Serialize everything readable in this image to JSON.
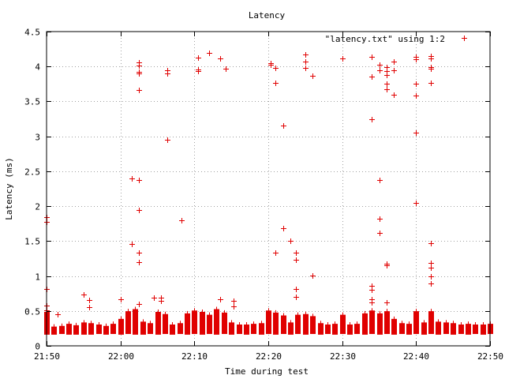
{
  "chart_data": {
    "type": "scatter",
    "title": "Latency",
    "xlabel": "Time during test",
    "ylabel": "Latency (ms)",
    "x_unit": "minutes",
    "xlim_min": [
      0,
      60
    ],
    "ylim": [
      0,
      4.5
    ],
    "x_ticks": [
      {
        "label": "21:50",
        "value": 0
      },
      {
        "label": "22:00",
        "value": 10
      },
      {
        "label": "22:10",
        "value": 20
      },
      {
        "label": "22:20",
        "value": 30
      },
      {
        "label": "22:30",
        "value": 40
      },
      {
        "label": "22:40",
        "value": 50
      },
      {
        "label": "22:50",
        "value": 60
      }
    ],
    "y_ticks": [
      {
        "label": "0",
        "value": 0
      },
      {
        "label": "0.5",
        "value": 0.5
      },
      {
        "label": "1",
        "value": 1
      },
      {
        "label": "1.5",
        "value": 1.5
      },
      {
        "label": "2",
        "value": 2
      },
      {
        "label": "2.5",
        "value": 2.5
      },
      {
        "label": "3",
        "value": 3
      },
      {
        "label": "3.5",
        "value": 3.5
      },
      {
        "label": "4",
        "value": 4
      },
      {
        "label": "4.5",
        "value": 4.5
      }
    ],
    "grid": true,
    "legend": {
      "position": "top-right",
      "entries": [
        "\"latency.txt\" using 1:2"
      ]
    },
    "series": [
      {
        "name": "\"latency.txt\" using 1:2",
        "color": "#e00000",
        "marker": "plus",
        "points": [
          [
            0.0,
            1.84
          ],
          [
            0.0,
            1.78
          ],
          [
            0.0,
            0.81
          ],
          [
            0.0,
            0.58
          ],
          [
            0.0,
            0.51
          ],
          [
            0.0,
            0.47
          ],
          [
            1.5,
            0.45
          ],
          [
            5.0,
            0.74
          ],
          [
            5.8,
            0.66
          ],
          [
            5.8,
            0.55
          ],
          [
            10.0,
            0.67
          ],
          [
            11.5,
            2.4
          ],
          [
            11.5,
            1.46
          ],
          [
            12.5,
            4.06
          ],
          [
            12.5,
            4.01
          ],
          [
            12.5,
            3.92
          ],
          [
            12.5,
            3.9
          ],
          [
            12.5,
            3.66
          ],
          [
            12.5,
            2.37
          ],
          [
            12.5,
            1.95
          ],
          [
            12.5,
            1.33
          ],
          [
            12.5,
            1.2
          ],
          [
            12.5,
            0.6
          ],
          [
            14.5,
            0.69
          ],
          [
            15.5,
            0.69
          ],
          [
            15.5,
            0.65
          ],
          [
            16.3,
            3.95
          ],
          [
            16.3,
            3.9
          ],
          [
            16.3,
            2.95
          ],
          [
            18.3,
            1.8
          ],
          [
            20.5,
            4.13
          ],
          [
            20.5,
            3.96
          ],
          [
            20.5,
            3.94
          ],
          [
            22.0,
            4.2
          ],
          [
            23.5,
            4.12
          ],
          [
            23.5,
            0.67
          ],
          [
            24.2,
            3.97
          ],
          [
            25.3,
            0.64
          ],
          [
            25.3,
            0.57
          ],
          [
            30.3,
            4.05
          ],
          [
            30.3,
            4.03
          ],
          [
            31.0,
            3.98
          ],
          [
            31.0,
            3.77
          ],
          [
            31.0,
            1.33
          ],
          [
            32.0,
            3.16
          ],
          [
            32.0,
            1.68
          ],
          [
            33.0,
            1.5
          ],
          [
            33.7,
            1.33
          ],
          [
            33.7,
            1.23
          ],
          [
            33.7,
            0.81
          ],
          [
            33.7,
            0.7
          ],
          [
            35.0,
            4.17
          ],
          [
            35.0,
            4.07
          ],
          [
            35.0,
            3.98
          ],
          [
            36.0,
            3.87
          ],
          [
            36.0,
            1.01
          ],
          [
            40.0,
            4.11
          ],
          [
            44.0,
            4.14
          ],
          [
            44.0,
            3.85
          ],
          [
            44.0,
            3.25
          ],
          [
            44.0,
            0.86
          ],
          [
            44.0,
            0.8
          ],
          [
            44.0,
            0.67
          ],
          [
            44.0,
            0.62
          ],
          [
            45.0,
            4.02
          ],
          [
            45.0,
            3.95
          ],
          [
            45.0,
            2.37
          ],
          [
            45.0,
            1.82
          ],
          [
            45.0,
            1.62
          ],
          [
            46.0,
            3.99
          ],
          [
            46.0,
            3.93
          ],
          [
            46.0,
            3.88
          ],
          [
            46.0,
            3.75
          ],
          [
            46.0,
            3.68
          ],
          [
            46.0,
            1.18
          ],
          [
            46.0,
            1.15
          ],
          [
            46.0,
            0.62
          ],
          [
            47.0,
            4.07
          ],
          [
            47.0,
            3.95
          ],
          [
            47.0,
            3.59
          ],
          [
            50.0,
            4.14
          ],
          [
            50.0,
            4.1
          ],
          [
            50.0,
            3.75
          ],
          [
            50.0,
            3.58
          ],
          [
            50.0,
            3.05
          ],
          [
            50.0,
            2.05
          ],
          [
            52.0,
            4.15
          ],
          [
            52.0,
            4.11
          ],
          [
            52.0,
            3.99
          ],
          [
            52.0,
            3.97
          ],
          [
            52.0,
            3.76
          ],
          [
            52.0,
            1.47
          ],
          [
            52.0,
            1.19
          ],
          [
            52.0,
            1.12
          ],
          [
            52.0,
            0.99
          ],
          [
            52.0,
            0.89
          ]
        ],
        "binned_clusters": [
          [
            0.0,
            0.16,
            0.48
          ],
          [
            1.0,
            0.16,
            0.27
          ],
          [
            2.0,
            0.17,
            0.28
          ],
          [
            3.0,
            0.16,
            0.31
          ],
          [
            4.0,
            0.16,
            0.29
          ],
          [
            5.0,
            0.16,
            0.33
          ],
          [
            6.0,
            0.16,
            0.32
          ],
          [
            7.0,
            0.17,
            0.3
          ],
          [
            8.0,
            0.16,
            0.28
          ],
          [
            9.0,
            0.17,
            0.31
          ],
          [
            10.0,
            0.16,
            0.38
          ],
          [
            11.0,
            0.17,
            0.49
          ],
          [
            12.0,
            0.16,
            0.52
          ],
          [
            13.0,
            0.16,
            0.34
          ],
          [
            14.0,
            0.17,
            0.32
          ],
          [
            15.0,
            0.16,
            0.48
          ],
          [
            16.0,
            0.17,
            0.45
          ],
          [
            17.0,
            0.16,
            0.3
          ],
          [
            18.0,
            0.17,
            0.32
          ],
          [
            19.0,
            0.16,
            0.46
          ],
          [
            20.0,
            0.17,
            0.5
          ],
          [
            21.0,
            0.16,
            0.48
          ],
          [
            22.0,
            0.17,
            0.44
          ],
          [
            23.0,
            0.16,
            0.52
          ],
          [
            24.0,
            0.17,
            0.47
          ],
          [
            25.0,
            0.16,
            0.33
          ],
          [
            26.0,
            0.17,
            0.3
          ],
          [
            27.0,
            0.16,
            0.3
          ],
          [
            28.0,
            0.17,
            0.31
          ],
          [
            29.0,
            0.16,
            0.32
          ],
          [
            30.0,
            0.17,
            0.5
          ],
          [
            31.0,
            0.16,
            0.47
          ],
          [
            32.0,
            0.17,
            0.43
          ],
          [
            33.0,
            0.16,
            0.33
          ],
          [
            34.0,
            0.17,
            0.44
          ],
          [
            35.0,
            0.16,
            0.45
          ],
          [
            36.0,
            0.17,
            0.42
          ],
          [
            37.0,
            0.16,
            0.32
          ],
          [
            38.0,
            0.17,
            0.3
          ],
          [
            39.0,
            0.16,
            0.31
          ],
          [
            40.0,
            0.17,
            0.44
          ],
          [
            41.0,
            0.16,
            0.3
          ],
          [
            42.0,
            0.17,
            0.31
          ],
          [
            43.0,
            0.16,
            0.46
          ],
          [
            44.0,
            0.17,
            0.5
          ],
          [
            45.0,
            0.16,
            0.46
          ],
          [
            46.0,
            0.17,
            0.49
          ],
          [
            47.0,
            0.16,
            0.38
          ],
          [
            48.0,
            0.17,
            0.32
          ],
          [
            49.0,
            0.16,
            0.31
          ],
          [
            50.0,
            0.17,
            0.49
          ],
          [
            51.0,
            0.16,
            0.33
          ],
          [
            52.0,
            0.17,
            0.49
          ],
          [
            53.0,
            0.16,
            0.34
          ],
          [
            54.0,
            0.17,
            0.33
          ],
          [
            55.0,
            0.16,
            0.32
          ],
          [
            56.0,
            0.17,
            0.3
          ],
          [
            57.0,
            0.16,
            0.31
          ],
          [
            58.0,
            0.17,
            0.3
          ],
          [
            59.0,
            0.16,
            0.3
          ],
          [
            60.0,
            0.17,
            0.31
          ]
        ]
      }
    ]
  }
}
